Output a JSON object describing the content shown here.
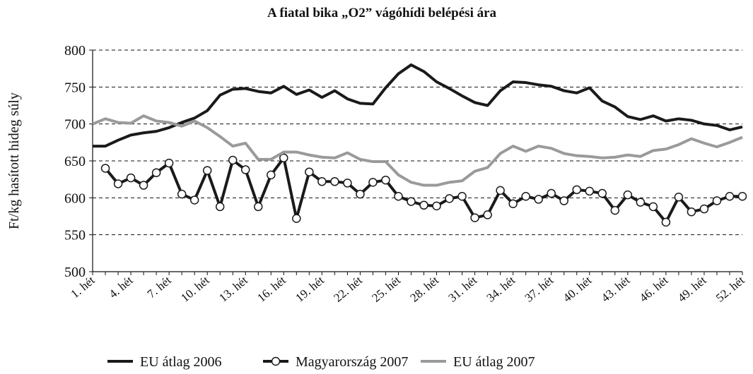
{
  "chart_data": {
    "type": "line",
    "title": "A fiatal bika „O2” vágóhídi belépési ára",
    "ylabel": "Ft/kg hasított hideg súly",
    "categories": [
      "1. hét",
      null,
      null,
      "4. hét",
      null,
      null,
      "7. hét",
      null,
      null,
      "10. hét",
      null,
      null,
      "13. hét",
      null,
      null,
      "16. hét",
      null,
      null,
      "19. hét",
      null,
      null,
      "22. hét",
      null,
      null,
      "25. hét",
      null,
      null,
      "28. hét",
      null,
      null,
      "31. hét",
      null,
      null,
      "34. hét",
      null,
      null,
      "37. hét",
      null,
      null,
      "40. hét",
      null,
      null,
      "43. hét",
      null,
      null,
      "46. hét",
      null,
      null,
      "49. hét",
      null,
      null,
      "52. hét"
    ],
    "series": [
      {
        "name": "EU átlag 2006",
        "color": "#1a1a1a",
        "marker": null,
        "values": [
          670,
          670,
          678,
          685,
          688,
          690,
          695,
          702,
          708,
          718,
          739,
          747,
          748,
          744,
          742,
          751,
          740,
          746,
          736,
          745,
          734,
          728,
          727,
          749,
          768,
          780,
          771,
          757,
          748,
          738,
          729,
          725,
          745,
          757,
          756,
          753,
          751,
          745,
          742,
          749,
          731,
          723,
          710,
          706,
          711,
          704,
          707,
          705,
          700,
          698,
          692,
          696
        ]
      },
      {
        "name": "Magyarország 2007",
        "color": "#1a1a1a",
        "marker": "circle",
        "values": [
          null,
          640,
          619,
          627,
          617,
          634,
          647,
          605,
          597,
          637,
          588,
          651,
          638,
          588,
          631,
          654,
          572,
          635,
          622,
          622,
          620,
          605,
          621,
          624,
          602,
          595,
          590,
          589,
          599,
          602,
          573,
          577,
          610,
          592,
          602,
          598,
          606,
          596,
          611,
          609,
          606,
          583,
          604,
          594,
          588,
          567,
          601,
          581,
          585,
          596,
          602,
          602
        ]
      },
      {
        "name": "EU átlag 2007",
        "color": "#9a9a9a",
        "marker": null,
        "values": [
          700,
          707,
          702,
          701,
          711,
          704,
          702,
          697,
          704,
          695,
          683,
          670,
          674,
          652,
          652,
          662,
          662,
          658,
          655,
          654,
          661,
          652,
          649,
          649,
          631,
          621,
          617,
          617,
          621,
          623,
          636,
          641,
          660,
          670,
          663,
          670,
          667,
          660,
          657,
          656,
          654,
          655,
          658,
          656,
          664,
          666,
          672,
          680,
          674,
          669,
          675,
          682
        ]
      }
    ],
    "ylim": [
      500,
      800
    ],
    "yticks": [
      500,
      550,
      600,
      650,
      700,
      750,
      800
    ],
    "grid": true,
    "legend": "bottom"
  }
}
